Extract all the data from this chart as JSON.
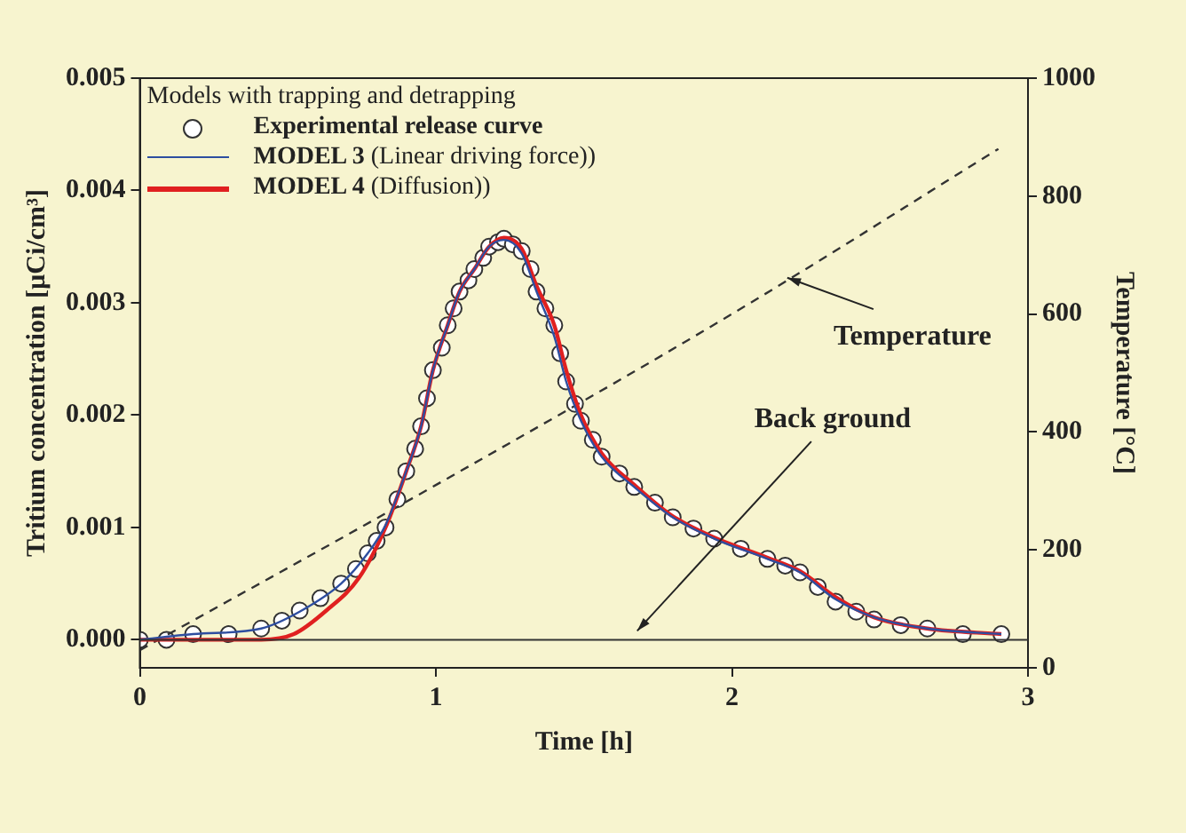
{
  "chart_data": {
    "type": "line",
    "xlabel": "Time [h]",
    "ylabel": "Tritium concentration [µCi/cm³]",
    "y2label": "Temperature [°C]",
    "legend_title": "Models with trapping and detrapping",
    "legend": "top left",
    "xlim": [
      0,
      3
    ],
    "xticks": [
      0,
      1,
      2,
      3
    ],
    "ylim": [
      -0.00025,
      0.005
    ],
    "yticks": [
      {
        "value": 0,
        "label": "0.000"
      },
      {
        "value": 0.001,
        "label": "0.001"
      },
      {
        "value": 0.002,
        "label": "0.002"
      },
      {
        "value": 0.003,
        "label": "0.003"
      },
      {
        "value": 0.004,
        "label": "0.004"
      },
      {
        "value": 0.005,
        "label": "0.005"
      }
    ],
    "y2lim": [
      0,
      1000
    ],
    "y2ticks": [
      0,
      200,
      400,
      600,
      800,
      1000
    ],
    "grid": false,
    "ref_lines": [
      {
        "axis": "y",
        "value": 0,
        "label": "Back ground",
        "color": "#333333"
      }
    ],
    "series": [
      {
        "name": "Experimental release curve",
        "type": "scatter",
        "marker": "circle",
        "color": "#333333",
        "x": [
          0,
          0.09,
          0.18,
          0.3,
          0.41,
          0.48,
          0.54,
          0.61,
          0.68,
          0.73,
          0.77,
          0.8,
          0.83,
          0.87,
          0.9,
          0.93,
          0.95,
          0.97,
          0.99,
          1.02,
          1.04,
          1.06,
          1.08,
          1.11,
          1.13,
          1.16,
          1.18,
          1.21,
          1.23,
          1.26,
          1.29,
          1.32,
          1.34,
          1.37,
          1.4,
          1.42,
          1.44,
          1.47,
          1.49,
          1.53,
          1.56,
          1.62,
          1.67,
          1.74,
          1.8,
          1.87,
          1.94,
          2.03,
          2.12,
          2.18,
          2.23,
          2.29,
          2.35,
          2.42,
          2.48,
          2.57,
          2.66,
          2.78,
          2.91
        ],
        "values": [
          0,
          0,
          5e-05,
          5e-05,
          0.0001,
          0.00017,
          0.00026,
          0.00037,
          0.0005,
          0.00063,
          0.00077,
          0.00088,
          0.001,
          0.00125,
          0.0015,
          0.0017,
          0.0019,
          0.00215,
          0.0024,
          0.0026,
          0.0028,
          0.00295,
          0.0031,
          0.0032,
          0.0033,
          0.0034,
          0.0035,
          0.00354,
          0.00357,
          0.00352,
          0.00346,
          0.0033,
          0.0031,
          0.00295,
          0.0028,
          0.00255,
          0.0023,
          0.0021,
          0.00195,
          0.00178,
          0.00163,
          0.00148,
          0.00136,
          0.00122,
          0.00109,
          0.00099,
          0.0009,
          0.00081,
          0.00072,
          0.00066,
          0.0006,
          0.00047,
          0.00034,
          0.00025,
          0.00018,
          0.00013,
          0.0001,
          5e-05,
          5e-05
        ]
      },
      {
        "name": "MODEL 3 (Linear driving force))",
        "color": "#2e4ea0",
        "x": [
          0,
          0.18,
          0.41,
          0.54,
          0.68,
          0.77,
          0.83,
          0.9,
          0.95,
          0.99,
          1.04,
          1.08,
          1.13,
          1.18,
          1.23,
          1.29,
          1.34,
          1.4,
          1.44,
          1.49,
          1.56,
          1.67,
          1.8,
          1.94,
          2.12,
          2.23,
          2.35,
          2.48,
          2.66,
          2.91
        ],
        "values": [
          0,
          5e-05,
          0.0001,
          0.00025,
          0.0005,
          0.00077,
          0.00102,
          0.0015,
          0.0019,
          0.0024,
          0.0028,
          0.0031,
          0.0033,
          0.0035,
          0.00356,
          0.00344,
          0.0031,
          0.0027,
          0.0023,
          0.00195,
          0.00163,
          0.00136,
          0.00109,
          0.0009,
          0.00072,
          0.0006,
          0.00036,
          0.0002,
          0.0001,
          5e-05
        ]
      },
      {
        "name": "MODEL 4 (Diffusion))",
        "color": "#e02020",
        "x": [
          0,
          0.2,
          0.41,
          0.52,
          0.63,
          0.74,
          0.83,
          0.9,
          0.95,
          0.99,
          1.04,
          1.08,
          1.13,
          1.18,
          1.23,
          1.29,
          1.34,
          1.4,
          1.44,
          1.49,
          1.56,
          1.67,
          1.8,
          1.94,
          2.12,
          2.23,
          2.35,
          2.48,
          2.66,
          2.91
        ],
        "values": [
          0,
          0,
          0,
          5e-05,
          0.00026,
          0.00055,
          0.001,
          0.0015,
          0.0019,
          0.0024,
          0.0028,
          0.0031,
          0.0033,
          0.0035,
          0.00358,
          0.00348,
          0.00315,
          0.0028,
          0.0024,
          0.002,
          0.00166,
          0.00138,
          0.0011,
          0.00091,
          0.00073,
          0.00061,
          0.00038,
          0.0002,
          0.0001,
          5e-05
        ]
      },
      {
        "name": "Temperature",
        "axis": "y2",
        "line_style": "dashed",
        "color": "#333333",
        "x": [
          0,
          1,
          2,
          2.9
        ],
        "values": [
          30,
          310,
          600,
          880
        ]
      }
    ]
  }
}
